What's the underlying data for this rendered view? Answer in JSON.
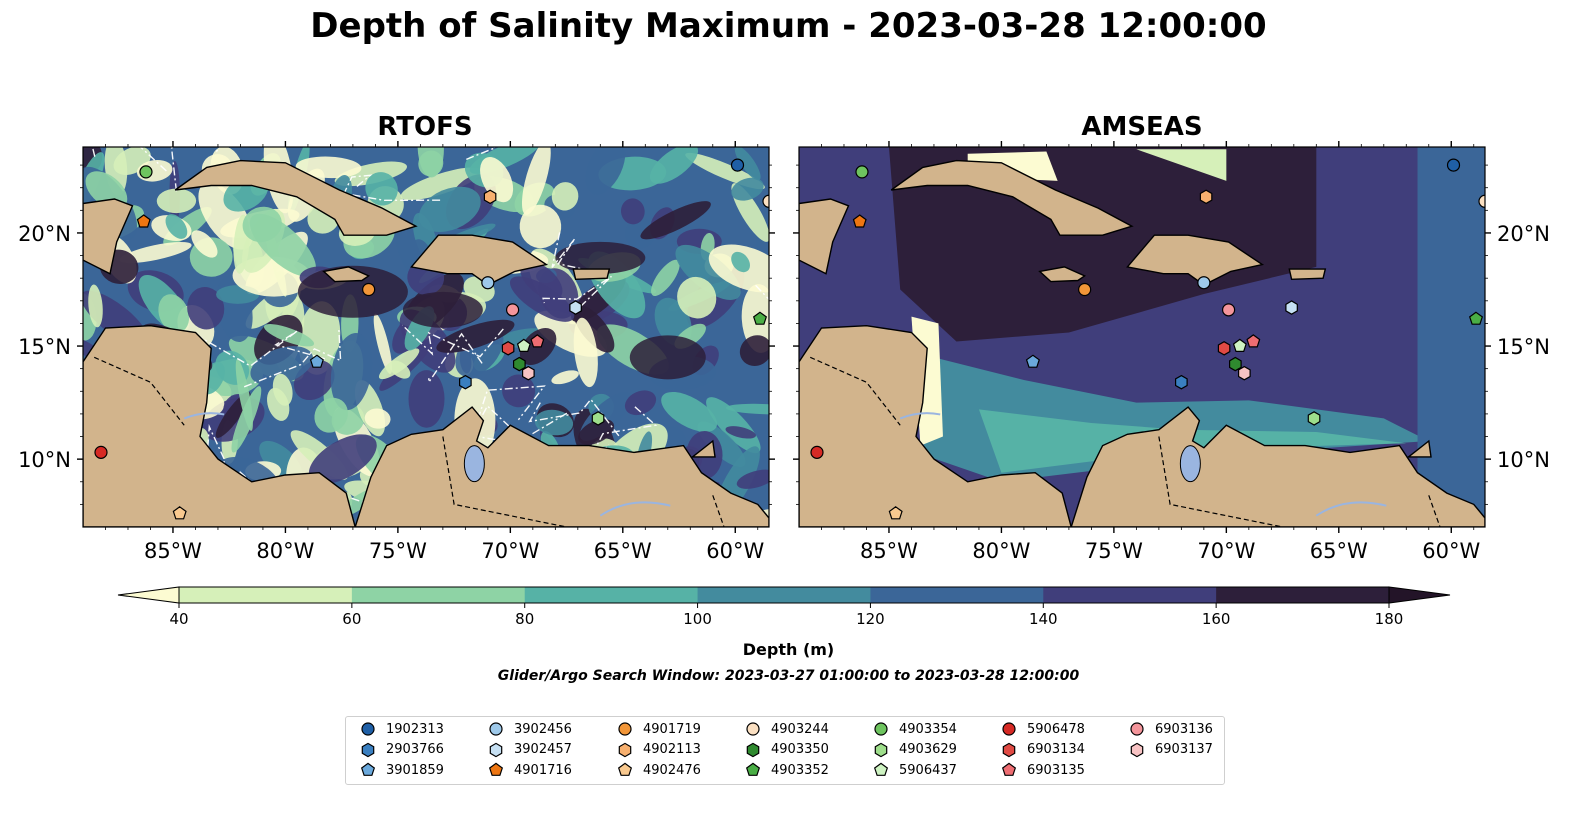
{
  "title": "Depth of Salinity Maximum - 2023-03-28 12:00:00",
  "panels": [
    {
      "name": "RTOFS",
      "scheme": "rtofs"
    },
    {
      "name": "AMSEAS",
      "scheme": "amseas"
    }
  ],
  "lon_ticks": [
    "85°W",
    "80°W",
    "75°W",
    "70°W",
    "65°W",
    "60°W"
  ],
  "lon_values": [
    -85,
    -80,
    -75,
    -70,
    -65,
    -60
  ],
  "lat_ticks": [
    "20°N",
    "15°N",
    "10°N"
  ],
  "lat_values": [
    20,
    15,
    10
  ],
  "extent": {
    "lon": [
      -89,
      -58.5
    ],
    "lat": [
      7,
      23.8
    ]
  },
  "colors": {
    "levels": [
      "#fcfbd2",
      "#d6f0b9",
      "#8ed3a5",
      "#56b2a6",
      "#438b9e",
      "#3b6698",
      "#403e7b",
      "#2d1f3a",
      "#231428"
    ],
    "land": "#d2b48c",
    "ocean_other": "#9ab5e0"
  },
  "colorbar": {
    "ticks": [
      "40",
      "60",
      "80",
      "100",
      "120",
      "140",
      "160",
      "180"
    ],
    "label": "Depth (m)"
  },
  "search_window": "Glider/Argo Search Window: 2023-03-27 01:00:00 to 2023-03-28 12:00:00",
  "chart_data": {
    "type": "heatmap",
    "title": "Depth of Salinity Maximum - 2023-03-28 12:00:00",
    "colorbar_label": "Depth (m)",
    "levels": [
      40,
      60,
      80,
      100,
      120,
      140,
      160,
      180
    ],
    "xlim": [
      -89,
      -58.5
    ],
    "ylim": [
      7,
      23.8
    ],
    "floats": [
      {
        "id": "1902313",
        "lon": -59.9,
        "lat": 23.0,
        "shape": "circle",
        "color": "#1f5fa6"
      },
      {
        "id": "2903766",
        "lon": -72.0,
        "lat": 13.4,
        "shape": "hexagon",
        "color": "#3a7fc0"
      },
      {
        "id": "3901859",
        "lon": -78.6,
        "lat": 14.3,
        "shape": "pentagon",
        "color": "#6ba9dc"
      },
      {
        "id": "3902456",
        "lon": -71.0,
        "lat": 17.8,
        "shape": "circle",
        "color": "#9ec9ea"
      },
      {
        "id": "3902457",
        "lon": -67.1,
        "lat": 16.7,
        "shape": "hexagon",
        "color": "#c6e0f3"
      },
      {
        "id": "4901716",
        "lon": -86.3,
        "lat": 20.5,
        "shape": "pentagon",
        "color": "#ee7612"
      },
      {
        "id": "4901719",
        "lon": -76.3,
        "lat": 17.5,
        "shape": "circle",
        "color": "#f29638"
      },
      {
        "id": "4902113",
        "lon": -70.9,
        "lat": 21.6,
        "shape": "hexagon",
        "color": "#f7b06f"
      },
      {
        "id": "4902476",
        "lon": -84.7,
        "lat": 7.6,
        "shape": "pentagon",
        "color": "#f9c98f"
      },
      {
        "id": "4903244",
        "lon": -58.5,
        "lat": 21.4,
        "shape": "circle",
        "color": "#fbe0c2"
      },
      {
        "id": "4903350",
        "lon": -69.6,
        "lat": 14.2,
        "shape": "hexagon",
        "color": "#2f8a2f"
      },
      {
        "id": "4903352",
        "lon": -58.9,
        "lat": 16.2,
        "shape": "pentagon",
        "color": "#4aae45"
      },
      {
        "id": "4903354",
        "lon": -86.2,
        "lat": 22.7,
        "shape": "circle",
        "color": "#6ec45f"
      },
      {
        "id": "4903629",
        "lon": -66.1,
        "lat": 11.8,
        "shape": "hexagon",
        "color": "#9ede8b"
      },
      {
        "id": "5906437",
        "lon": -69.4,
        "lat": 15.0,
        "shape": "pentagon",
        "color": "#cef3c2"
      },
      {
        "id": "5906478",
        "lon": -88.2,
        "lat": 10.3,
        "shape": "circle",
        "color": "#d62a25"
      },
      {
        "id": "6903134",
        "lon": -70.1,
        "lat": 14.9,
        "shape": "hexagon",
        "color": "#e04a44"
      },
      {
        "id": "6903135",
        "lon": -68.8,
        "lat": 15.2,
        "shape": "pentagon",
        "color": "#ee6d72"
      },
      {
        "id": "6903136",
        "lon": -69.9,
        "lat": 16.6,
        "shape": "circle",
        "color": "#f4959b"
      },
      {
        "id": "6903137",
        "lon": -69.2,
        "lat": 13.8,
        "shape": "hexagon",
        "color": "#f8c3c4"
      }
    ]
  }
}
